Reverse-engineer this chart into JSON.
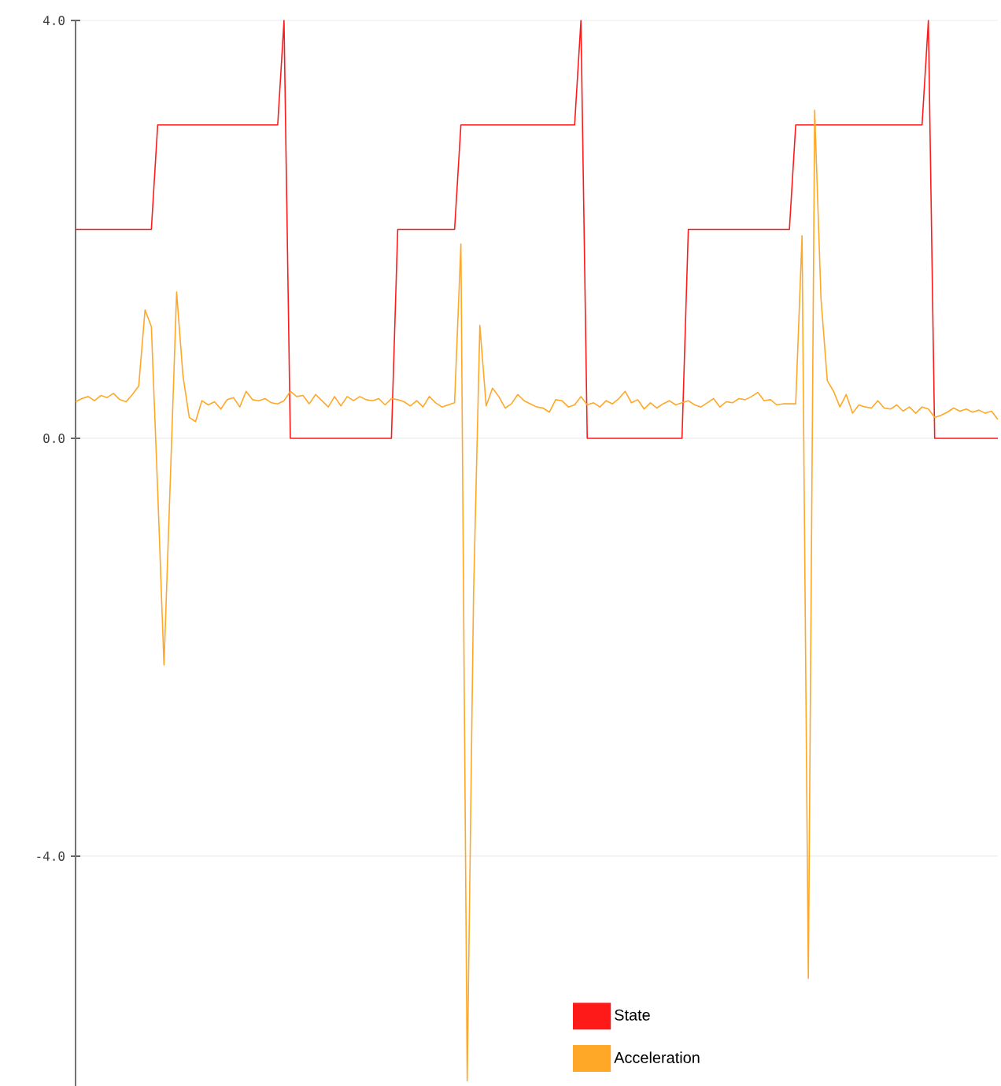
{
  "chart_data": {
    "type": "line",
    "categories": [
      null,
      null,
      null,
      null,
      null,
      null,
      null,
      null,
      null,
      null,
      null,
      null,
      null,
      null,
      null,
      null,
      null,
      null,
      null,
      null,
      null,
      null,
      null,
      null,
      null,
      null,
      null,
      null,
      null,
      null,
      null,
      null,
      null,
      null,
      null,
      null,
      null,
      null,
      null,
      null,
      null,
      null,
      null,
      null,
      null,
      null,
      null,
      null,
      null,
      null,
      null,
      null,
      null,
      null,
      null,
      null,
      null,
      null,
      null,
      null,
      null,
      null,
      null,
      null,
      null,
      null,
      null,
      null,
      null,
      null,
      null,
      null,
      null,
      null,
      null,
      null,
      null,
      null,
      null,
      null,
      null,
      null,
      null,
      null,
      null,
      null,
      null,
      null,
      null,
      null,
      null,
      null,
      null,
      null,
      null,
      null,
      null,
      null,
      null,
      null,
      null,
      null,
      null,
      null,
      null,
      null,
      null,
      null,
      null,
      null,
      null,
      null,
      null,
      null,
      null,
      null,
      null,
      null,
      null,
      null,
      null,
      null,
      null,
      null,
      null,
      null,
      null,
      null,
      null,
      null,
      null,
      null,
      null,
      null,
      null,
      null,
      null,
      null,
      null,
      null,
      null,
      null,
      null,
      null,
      null,
      null,
      null
    ],
    "series": [
      {
        "name": "State",
        "color": "#ff1a1a",
        "values": [
          2,
          2,
          2,
          2,
          2,
          2,
          2,
          2,
          2,
          2,
          2,
          2,
          2,
          3,
          3,
          3,
          3,
          3,
          3,
          3,
          3,
          3,
          3,
          3,
          3,
          3,
          3,
          3,
          3,
          3,
          3,
          3,
          3,
          4,
          0,
          0,
          0,
          0,
          0,
          0,
          0,
          0,
          0,
          0,
          0,
          0,
          0,
          0,
          0,
          0,
          0,
          2,
          2,
          2,
          2,
          2,
          2,
          2,
          2,
          2,
          2,
          3,
          3,
          3,
          3,
          3,
          3,
          3,
          3,
          3,
          3,
          3,
          3,
          3,
          3,
          3,
          3,
          3,
          3,
          3,
          4,
          0,
          0,
          0,
          0,
          0,
          0,
          0,
          0,
          0,
          0,
          0,
          0,
          0,
          0,
          0,
          0,
          2,
          2,
          2,
          2,
          2,
          2,
          2,
          2,
          2,
          2,
          2,
          2,
          2,
          2,
          2,
          2,
          2,
          3,
          3,
          3,
          3,
          3,
          3,
          3,
          3,
          3,
          3,
          3,
          3,
          3,
          3,
          3,
          3,
          3,
          3,
          3,
          3,
          3,
          4,
          0,
          0,
          0,
          0,
          0,
          0,
          0,
          0,
          0,
          0,
          0
        ]
      },
      {
        "name": "Acceleration",
        "color": "#ffa726",
        "values": [
          0.35,
          0.38,
          0.4,
          0.36,
          0.41,
          0.39,
          0.43,
          0.37,
          0.35,
          0.42,
          0.5,
          1.23,
          1.07,
          -0.5,
          -2.17,
          -0.4,
          1.4,
          0.6,
          0.2,
          0.16,
          0.36,
          0.32,
          0.35,
          0.28,
          0.37,
          0.39,
          0.3,
          0.45,
          0.37,
          0.36,
          0.38,
          0.34,
          0.33,
          0.36,
          0.45,
          0.4,
          0.41,
          0.33,
          0.42,
          0.36,
          0.3,
          0.4,
          0.31,
          0.4,
          0.36,
          0.4,
          0.37,
          0.36,
          0.38,
          0.32,
          0.38,
          0.37,
          0.35,
          0.31,
          0.36,
          0.3,
          0.4,
          0.34,
          0.3,
          0.32,
          0.34,
          1.86,
          -6.15,
          -1.5,
          1.08,
          0.31,
          0.48,
          0.4,
          0.29,
          0.33,
          0.42,
          0.36,
          0.33,
          0.3,
          0.29,
          0.25,
          0.37,
          0.36,
          0.3,
          0.32,
          0.4,
          0.32,
          0.34,
          0.3,
          0.36,
          0.33,
          0.38,
          0.45,
          0.34,
          0.37,
          0.28,
          0.34,
          0.29,
          0.33,
          0.36,
          0.32,
          0.34,
          0.36,
          0.32,
          0.3,
          0.34,
          0.38,
          0.3,
          0.35,
          0.34,
          0.38,
          0.37,
          0.4,
          0.44,
          0.36,
          0.37,
          0.32,
          0.33,
          0.33,
          0.33,
          1.94,
          -5.17,
          3.14,
          1.34,
          0.55,
          0.45,
          0.3,
          0.42,
          0.24,
          0.32,
          0.3,
          0.29,
          0.36,
          0.29,
          0.28,
          0.32,
          0.26,
          0.3,
          0.24,
          0.3,
          0.28,
          0.2,
          0.22,
          0.25,
          0.29,
          0.26,
          0.28,
          0.25,
          0.27,
          0.24,
          0.26,
          0.18
        ]
      }
    ],
    "ylim": [
      -6.2,
      4.0
    ],
    "yticks": [
      {
        "value": -4,
        "label": "-4.0"
      },
      {
        "value": 0,
        "label": "0.0"
      },
      {
        "value": 4,
        "label": "4.0"
      }
    ],
    "tick_labels": "y",
    "grid": "y",
    "legend": "bottom",
    "marker": "none",
    "line_style": "solid"
  }
}
